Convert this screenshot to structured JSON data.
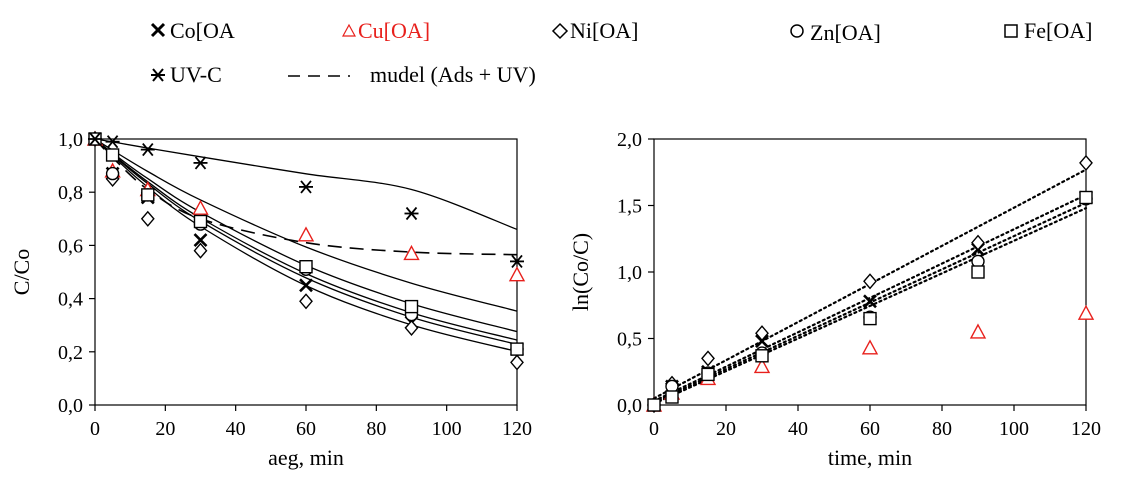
{
  "legend": {
    "items": [
      {
        "label": "Co[OA",
        "marker": "cross",
        "color": "#000000"
      },
      {
        "label": "Cu[OA]",
        "marker": "triangle",
        "color": "#e8201c"
      },
      {
        "label": "Ni[OA]",
        "marker": "diamond",
        "color": "#000000"
      },
      {
        "label": "Zn[OA]",
        "marker": "circle",
        "color": "#000000"
      },
      {
        "label": "Fe[OA]",
        "marker": "square",
        "color": "#000000"
      },
      {
        "label": "UV-C",
        "marker": "asterisk",
        "color": "#000000"
      },
      {
        "label": "mudel (Ads + UV)",
        "marker": "dashed-line",
        "color": "#000000"
      }
    ]
  },
  "chart_data": [
    {
      "type": "scatter",
      "xlabel": "aeg, min",
      "ylabel": "C/Co",
      "xlim": [
        0,
        120
      ],
      "ylim": [
        0,
        1.0
      ],
      "x_ticks": [
        "0",
        "20",
        "40",
        "60",
        "80",
        "100",
        "120"
      ],
      "y_ticks": [
        "0,0",
        "0,2",
        "0,4",
        "0,6",
        "0,8",
        "1,0"
      ],
      "grid": false,
      "x": [
        0,
        5,
        15,
        30,
        60,
        90,
        120
      ],
      "series": [
        {
          "name": "Co[OA",
          "marker": "cross",
          "color": "#000000",
          "values": [
            1.0,
            0.87,
            0.78,
            0.62,
            0.45,
            0.31,
            0.21
          ]
        },
        {
          "name": "Cu[OA]",
          "marker": "triangle",
          "color": "#e8201c",
          "values": [
            1.0,
            0.88,
            0.81,
            0.74,
            0.64,
            0.57,
            0.49
          ]
        },
        {
          "name": "Ni[OA]",
          "marker": "diamond",
          "color": "#000000",
          "values": [
            1.0,
            0.85,
            0.7,
            0.58,
            0.39,
            0.29,
            0.16
          ]
        },
        {
          "name": "Zn[OA]",
          "marker": "circle",
          "color": "#000000",
          "values": [
            1.0,
            0.87,
            0.79,
            0.68,
            0.51,
            0.34,
            0.21
          ]
        },
        {
          "name": "Fe[OA]",
          "marker": "square",
          "color": "#000000",
          "values": [
            1.0,
            0.94,
            0.79,
            0.69,
            0.52,
            0.37,
            0.21
          ]
        },
        {
          "name": "UV-C",
          "marker": "asterisk",
          "color": "#000000",
          "values": [
            1.0,
            0.99,
            0.96,
            0.91,
            0.82,
            0.72,
            0.54
          ]
        }
      ],
      "fit_curves": [
        {
          "style": "solid",
          "values": [
            1.0,
            0.958,
            0.878,
            0.771,
            0.594,
            0.458,
            0.353
          ]
        },
        {
          "style": "solid",
          "values": [
            1.0,
            0.947,
            0.851,
            0.725,
            0.525,
            0.381,
            0.276
          ]
        },
        {
          "style": "solid",
          "values": [
            1.0,
            0.936,
            0.819,
            0.671,
            0.449,
            0.301,
            0.201
          ]
        },
        {
          "style": "solid",
          "values": [
            1.0,
            0.94,
            0.832,
            0.691,
            0.478,
            0.33,
            0.228
          ]
        },
        {
          "style": "solid",
          "values": [
            1.0,
            0.943,
            0.839,
            0.703,
            0.494,
            0.347,
            0.244
          ]
        },
        {
          "style": "solid",
          "values": [
            1.0,
            0.989,
            0.966,
            0.933,
            0.869,
            0.81,
            0.66
          ]
        },
        {
          "style": "dashed",
          "values": [
            1.0,
            0.93,
            0.81,
            0.7,
            0.61,
            0.575,
            0.565
          ]
        }
      ]
    },
    {
      "type": "scatter",
      "xlabel": "time, min",
      "ylabel": "ln(Co/C)",
      "xlim": [
        0,
        120
      ],
      "ylim": [
        0,
        2.0
      ],
      "x_ticks": [
        "0",
        "20",
        "40",
        "60",
        "80",
        "100",
        "120"
      ],
      "y_ticks": [
        "0,0",
        "0,5",
        "1,0",
        "1,5",
        "2,0"
      ],
      "grid": false,
      "x": [
        0,
        5,
        15,
        30,
        60,
        90,
        120
      ],
      "series": [
        {
          "name": "Co[OA",
          "marker": "cross",
          "color": "#000000",
          "values": [
            0,
            0.14,
            0.25,
            0.48,
            0.78,
            1.17,
            1.56
          ]
        },
        {
          "name": "Cu[OA]",
          "marker": "triangle",
          "color": "#e8201c",
          "values": [
            0,
            0.09,
            0.2,
            0.29,
            0.43,
            0.55,
            0.69
          ]
        },
        {
          "name": "Ni[OA]",
          "marker": "diamond",
          "color": "#000000",
          "values": [
            0,
            0.16,
            0.35,
            0.54,
            0.93,
            1.22,
            1.82
          ]
        },
        {
          "name": "Zn[OA]",
          "marker": "circle",
          "color": "#000000",
          "values": [
            0,
            0.14,
            0.24,
            0.39,
            0.66,
            1.08,
            1.55
          ]
        },
        {
          "name": "Fe[OA]",
          "marker": "square",
          "color": "#000000",
          "values": [
            0,
            0.06,
            0.23,
            0.37,
            0.65,
            1.0,
            1.56
          ]
        }
      ],
      "trendlines": [
        {
          "style": "dotted",
          "x": [
            0,
            120
          ],
          "values": [
            0.05,
            1.77
          ]
        },
        {
          "style": "dotted",
          "x": [
            0,
            120
          ],
          "values": [
            0.03,
            1.58
          ]
        },
        {
          "style": "dotted",
          "x": [
            0,
            120
          ],
          "values": [
            0.02,
            1.52
          ]
        },
        {
          "style": "dotted",
          "x": [
            0,
            120
          ],
          "values": [
            0.01,
            1.48
          ]
        }
      ]
    }
  ]
}
